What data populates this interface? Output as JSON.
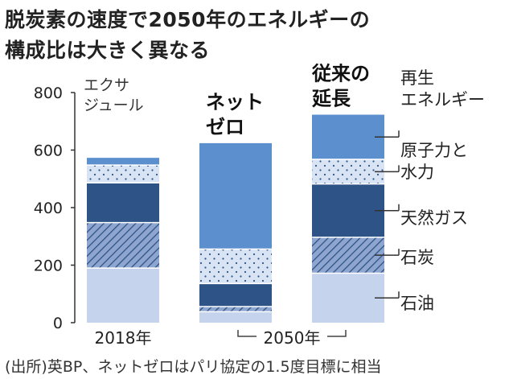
{
  "title_line1": "脱炭素の速度で2050年のエネルギーの",
  "title_line2": "構成比は大きく異なる",
  "source": "(出所)英BP、ネットゼロはパリ協定の1.5度目標に相当",
  "chart_data": {
    "type": "bar",
    "stacked": true,
    "unit_label": [
      "エクサ",
      "ジュール"
    ],
    "ylim": [
      0,
      800
    ],
    "yticks": [
      0,
      200,
      400,
      600,
      800
    ],
    "categories": [
      "2018年",
      "ネットゼロ",
      "従来の延長"
    ],
    "bar_labels": [
      "",
      "ネット\nゼロ",
      "従来の\n延長"
    ],
    "x_axis_labels": [
      "2018年",
      "2050年"
    ],
    "x_group_2050": [
      "ネットゼロ",
      "従来の延長"
    ],
    "series": [
      {
        "name": "石油",
        "values": [
          190,
          38,
          172
        ],
        "color": "#c5d4ec",
        "pattern": "solid"
      },
      {
        "name": "石炭",
        "values": [
          158,
          18,
          125
        ],
        "color": "#8ea6cf",
        "pattern": "hatch"
      },
      {
        "name": "天然ガス",
        "values": [
          138,
          80,
          185
        ],
        "color": "#2e5387",
        "pattern": "solid"
      },
      {
        "name": "原子力と水力",
        "values": [
          62,
          120,
          86
        ],
        "color": "#d8e3f3",
        "pattern": "dots"
      },
      {
        "name": "再生エネルギー",
        "values": [
          25,
          368,
          155
        ],
        "color": "#5b8fce",
        "pattern": "solid"
      }
    ],
    "legend": [
      {
        "lines": [
          "再生",
          "エネルギー"
        ],
        "series": "再生エネルギー"
      },
      {
        "lines": [
          "原子力と",
          "水力"
        ],
        "series": "原子力と水力"
      },
      {
        "lines": [
          "天然ガス"
        ],
        "series": "天然ガス"
      },
      {
        "lines": [
          "石炭"
        ],
        "series": "石炭"
      },
      {
        "lines": [
          "石油"
        ],
        "series": "石油"
      }
    ],
    "legend_placement": "right"
  }
}
